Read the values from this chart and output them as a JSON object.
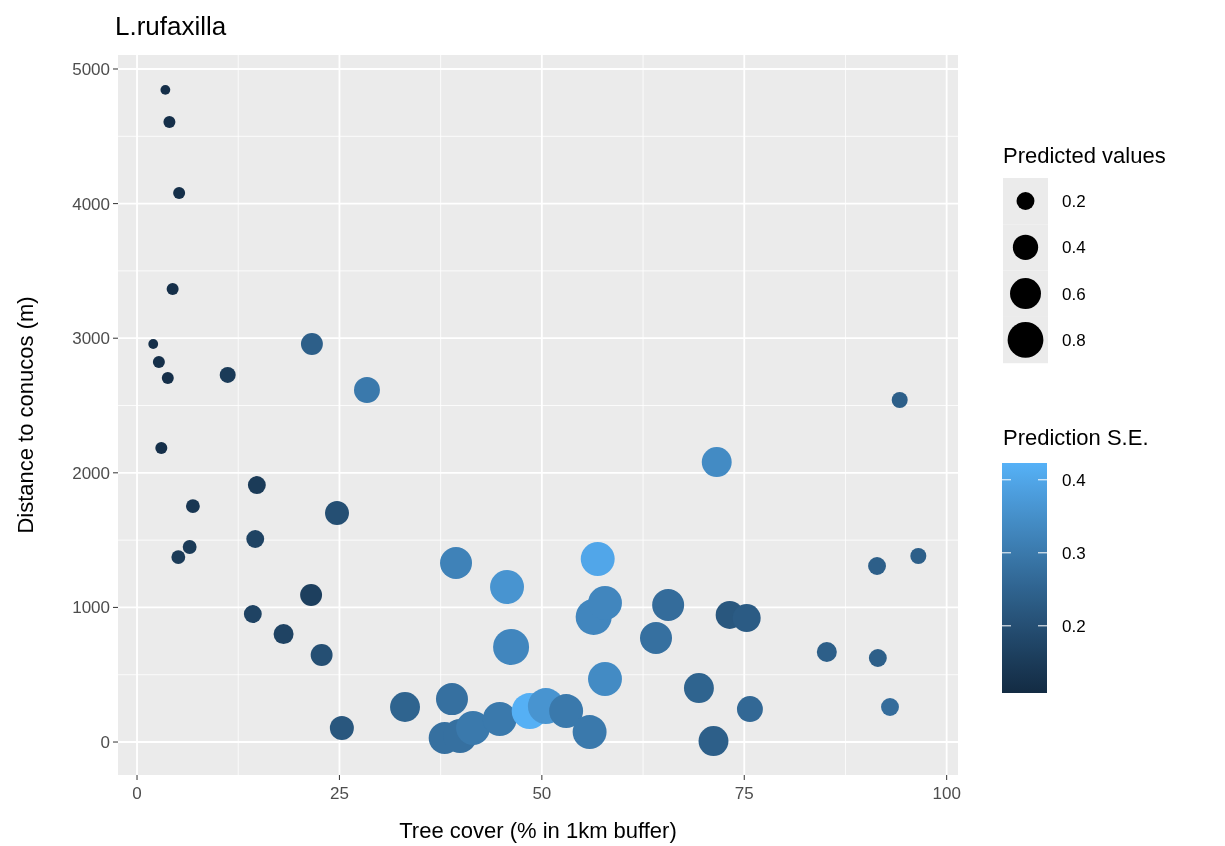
{
  "chart_data": {
    "type": "bubble",
    "title": "L.rufaxilla",
    "xlabel": "Tree cover (% in 1km buffer)",
    "ylabel": "Distance to conucos  (m)",
    "legend_title": "Predicted values",
    "clabel": "Prediction S.E.",
    "xlim": [
      -2.35,
      101.4
    ],
    "ylim": [
      -245,
      5104
    ],
    "xticks": [
      0,
      25,
      50,
      75,
      100
    ],
    "yticks": [
      0,
      1000,
      2000,
      3000,
      4000,
      5000
    ],
    "grid": true,
    "size_legend": [
      0.2,
      0.4,
      0.6,
      0.8
    ],
    "clim": [
      0.108,
      0.423
    ],
    "cticks": [
      0.2,
      0.3,
      0.4
    ],
    "x": [
      3.5,
      4.0,
      5.2,
      4.4,
      2.0,
      2.7,
      3.8,
      11.2,
      3.0,
      21.6,
      28.4,
      14.8,
      6.9,
      24.7,
      6.5,
      5.1,
      14.6,
      21.5,
      14.3,
      18.1,
      22.8,
      25.3,
      33.1,
      39.4,
      38.9,
      38.0,
      39.9,
      41.5,
      44.8,
      45.7,
      46.2,
      48.5,
      50.5,
      53.0,
      55.9,
      56.4,
      56.9,
      57.8,
      57.8,
      64.1,
      65.6,
      69.4,
      71.2,
      71.6,
      73.2,
      75.3,
      75.7,
      85.2,
      91.4,
      91.5,
      93.0,
      94.2,
      96.5
    ],
    "values": [
      4845,
      4606,
      4079,
      3365,
      2957,
      2823,
      2704,
      2727,
      2184,
      2957,
      2615,
      1909,
      1753,
      1701,
      1449,
      1374,
      1508,
      1092,
      951,
      802,
      646,
      104,
      260,
      1330,
      319,
      30,
      45,
      104,
      171,
      1152,
      706,
      230,
      267,
      230,
      74,
      929,
      1360,
      1033,
      468,
      773,
      1018,
      401,
      7,
      2080,
      944,
      921,
      245,
      669,
      1308,
      624,
      260,
      2541,
      1382
    ],
    "sizes": [
      0.06,
      0.09,
      0.09,
      0.09,
      0.06,
      0.09,
      0.09,
      0.16,
      0.09,
      0.3,
      0.42,
      0.2,
      0.12,
      0.36,
      0.12,
      0.12,
      0.2,
      0.3,
      0.2,
      0.25,
      0.3,
      0.36,
      0.56,
      0.64,
      0.64,
      0.64,
      0.72,
      0.72,
      0.72,
      0.72,
      0.81,
      0.81,
      0.81,
      0.72,
      0.72,
      0.81,
      0.72,
      0.72,
      0.72,
      0.64,
      0.64,
      0.56,
      0.56,
      0.56,
      0.49,
      0.49,
      0.42,
      0.25,
      0.2,
      0.2,
      0.2,
      0.16,
      0.16
    ],
    "cvalues": [
      0.12,
      0.12,
      0.12,
      0.12,
      0.12,
      0.12,
      0.12,
      0.15,
      0.12,
      0.24,
      0.3,
      0.15,
      0.14,
      0.2,
      0.15,
      0.15,
      0.17,
      0.16,
      0.17,
      0.17,
      0.2,
      0.22,
      0.25,
      0.32,
      0.28,
      0.28,
      0.28,
      0.3,
      0.3,
      0.36,
      0.33,
      0.42,
      0.36,
      0.3,
      0.3,
      0.33,
      0.4,
      0.33,
      0.34,
      0.28,
      0.27,
      0.25,
      0.24,
      0.34,
      0.22,
      0.23,
      0.26,
      0.24,
      0.24,
      0.24,
      0.27,
      0.24,
      0.24
    ]
  }
}
